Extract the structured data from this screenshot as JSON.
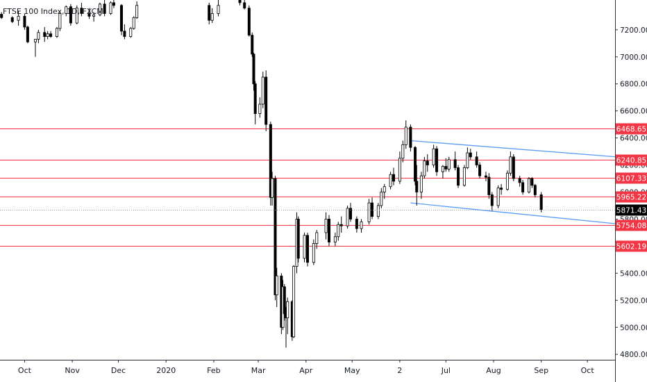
{
  "chart_data": {
    "type": "candlestick",
    "legend": "FTSE 100 Index, 1D, FXCM",
    "ylim": [
      4760,
      7420
    ],
    "y_ticks": [
      4800,
      5000,
      5200,
      5400,
      5600,
      5800,
      6000,
      6200,
      6400,
      6600,
      6800,
      7000,
      7200
    ],
    "y_tick_labels": [
      "4800.00",
      "5000.00",
      "5200.00",
      "5400.00",
      "5600.00",
      "5800.00",
      "6000.00",
      "6200.00",
      "6400.00",
      "6600.00",
      "6800.00",
      "7000.00",
      "7200.00"
    ],
    "x_start": "2019-09-15",
    "x_end": "2020-10-19",
    "x_ticks": [
      {
        "date": "2019-10-01",
        "label": "Oct"
      },
      {
        "date": "2019-11-01",
        "label": "Nov"
      },
      {
        "date": "2019-12-01",
        "label": "Dec"
      },
      {
        "date": "2020-01-01",
        "label": "2020"
      },
      {
        "date": "2020-02-01",
        "label": "Feb"
      },
      {
        "date": "2020-03-01",
        "label": "Mar"
      },
      {
        "date": "2020-04-01",
        "label": "Apr"
      },
      {
        "date": "2020-05-01",
        "label": "May"
      },
      {
        "date": "2020-06-01",
        "label": "2"
      },
      {
        "date": "2020-07-01",
        "label": "Jul"
      },
      {
        "date": "2020-08-01",
        "label": "Aug"
      },
      {
        "date": "2020-09-01",
        "label": "Sep"
      },
      {
        "date": "2020-10-01",
        "label": "Oct"
      }
    ],
    "levels": [
      {
        "value": 6468.65,
        "label": "6468.65"
      },
      {
        "value": 6240.85,
        "label": "6240.85"
      },
      {
        "value": 6107.33,
        "label": "6107.33"
      },
      {
        "value": 5965.22,
        "label": "5965.22"
      },
      {
        "value": 5754.08,
        "label": "5754.08"
      },
      {
        "value": 5602.19,
        "label": "5602.19"
      }
    ],
    "last_price": {
      "value": 5871.43,
      "label": "5871.43"
    },
    "trendlines": [
      {
        "from": [
          "2020-06-08",
          6380
        ],
        "to": [
          "2020-10-20",
          6260
        ]
      },
      {
        "from": [
          "2020-06-08",
          5920
        ],
        "to": [
          "2020-10-20",
          5765
        ]
      }
    ],
    "colors": {
      "level": "#f23645",
      "trendline": "#5b9cf6",
      "candle": "#000000",
      "last_price_badge": "#000000",
      "axis_text": "#131722"
    },
    "candles": [
      [
        "2019-09-16",
        7315,
        7330,
        7280,
        7290
      ],
      [
        "2019-09-23",
        7290,
        7300,
        7250,
        7260
      ],
      [
        "2019-09-27",
        7270,
        7340,
        7230,
        7300
      ],
      [
        "2019-10-01",
        7300,
        7320,
        7200,
        7220
      ],
      [
        "2019-10-03",
        7220,
        7230,
        7100,
        7110
      ],
      [
        "2019-10-08",
        7110,
        7130,
        7000,
        7130
      ],
      [
        "2019-10-10",
        7130,
        7200,
        7100,
        7180
      ],
      [
        "2019-10-14",
        7180,
        7220,
        7110,
        7150
      ],
      [
        "2019-10-16",
        7150,
        7190,
        7130,
        7170
      ],
      [
        "2019-10-18",
        7170,
        7190,
        7140,
        7150
      ],
      [
        "2019-10-22",
        7150,
        7220,
        7140,
        7210
      ],
      [
        "2019-10-24",
        7210,
        7340,
        7190,
        7320
      ],
      [
        "2019-10-28",
        7320,
        7380,
        7300,
        7370
      ],
      [
        "2019-10-31",
        7370,
        7390,
        7230,
        7250
      ],
      [
        "2019-11-04",
        7250,
        7380,
        7240,
        7360
      ],
      [
        "2019-11-07",
        7360,
        7400,
        7300,
        7320
      ],
      [
        "2019-11-12",
        7320,
        7360,
        7280,
        7300
      ],
      [
        "2019-11-15",
        7300,
        7330,
        7260,
        7310
      ],
      [
        "2019-11-19",
        7310,
        7400,
        7300,
        7390
      ],
      [
        "2019-11-22",
        7390,
        7420,
        7300,
        7320
      ],
      [
        "2019-11-26",
        7320,
        7410,
        7310,
        7400
      ],
      [
        "2019-11-28",
        7400,
        7420,
        7360,
        7380
      ],
      [
        "2019-12-03",
        7380,
        7390,
        7160,
        7190
      ],
      [
        "2019-12-05",
        7190,
        7240,
        7130,
        7150
      ],
      [
        "2019-12-09",
        7150,
        7220,
        7140,
        7210
      ],
      [
        "2019-12-11",
        7210,
        7300,
        7200,
        7290
      ],
      [
        "2019-12-13",
        7290,
        7410,
        7280,
        7380
      ],
      [
        "2020-01-29",
        7380,
        7400,
        7240,
        7270
      ],
      [
        "2020-01-31",
        7270,
        7360,
        7250,
        7320
      ],
      [
        "2020-02-04",
        7320,
        7420,
        7300,
        7380
      ],
      [
        "2020-02-18",
        7420,
        7440,
        7380,
        7400
      ],
      [
        "2020-02-21",
        7400,
        7420,
        7350,
        7360
      ],
      [
        "2020-02-24",
        7360,
        7380,
        7150,
        7160
      ],
      [
        "2020-02-26",
        7160,
        7180,
        7000,
        7020
      ],
      [
        "2020-02-27",
        7020,
        7030,
        6750,
        6800
      ],
      [
        "2020-02-28",
        6800,
        6820,
        6500,
        6580
      ],
      [
        "2020-03-02",
        6580,
        6700,
        6550,
        6650
      ],
      [
        "2020-03-04",
        6650,
        6890,
        6620,
        6850
      ],
      [
        "2020-03-06",
        6850,
        6900,
        6450,
        6500
      ],
      [
        "2020-03-09",
        6500,
        6520,
        5900,
        5960
      ],
      [
        "2020-03-10",
        5960,
        6150,
        5900,
        6100
      ],
      [
        "2020-03-12",
        6100,
        6120,
        5200,
        5240
      ],
      [
        "2020-03-13",
        5240,
        5440,
        5150,
        5380
      ],
      [
        "2020-03-16",
        5380,
        5400,
        4950,
        5000
      ],
      [
        "2020-03-17",
        5000,
        5350,
        4980,
        5300
      ],
      [
        "2020-03-18",
        5300,
        5320,
        5050,
        5100
      ],
      [
        "2020-03-19",
        5100,
        5150,
        4850,
        5070
      ],
      [
        "2020-03-20",
        5070,
        5220,
        4950,
        5190
      ],
      [
        "2020-03-23",
        5190,
        5200,
        4900,
        4930
      ],
      [
        "2020-03-24",
        4930,
        5460,
        4920,
        5450
      ],
      [
        "2020-03-26",
        5450,
        5850,
        5400,
        5800
      ],
      [
        "2020-03-27",
        5800,
        5820,
        5480,
        5510
      ],
      [
        "2020-03-31",
        5510,
        5700,
        5480,
        5680
      ],
      [
        "2020-04-02",
        5680,
        5700,
        5450,
        5480
      ],
      [
        "2020-04-06",
        5480,
        5650,
        5460,
        5620
      ],
      [
        "2020-04-08",
        5620,
        5720,
        5580,
        5700
      ],
      [
        "2020-04-14",
        5700,
        5850,
        5650,
        5800
      ],
      [
        "2020-04-16",
        5800,
        5830,
        5600,
        5630
      ],
      [
        "2020-04-20",
        5630,
        5700,
        5600,
        5670
      ],
      [
        "2020-04-22",
        5670,
        5780,
        5640,
        5760
      ],
      [
        "2020-04-24",
        5760,
        5820,
        5700,
        5750
      ],
      [
        "2020-04-28",
        5750,
        5900,
        5730,
        5880
      ],
      [
        "2020-04-30",
        5880,
        5920,
        5780,
        5800
      ],
      [
        "2020-05-04",
        5800,
        5820,
        5700,
        5730
      ],
      [
        "2020-05-07",
        5730,
        5800,
        5700,
        5780
      ],
      [
        "2020-05-12",
        5780,
        5950,
        5760,
        5920
      ],
      [
        "2020-05-14",
        5920,
        5960,
        5800,
        5820
      ],
      [
        "2020-05-18",
        5820,
        5920,
        5800,
        5900
      ],
      [
        "2020-05-20",
        5900,
        6030,
        5880,
        6000
      ],
      [
        "2020-05-22",
        6000,
        6060,
        5950,
        6040
      ],
      [
        "2020-05-26",
        6040,
        6150,
        6020,
        6130
      ],
      [
        "2020-05-28",
        6130,
        6180,
        6050,
        6080
      ],
      [
        "2020-06-01",
        6080,
        6300,
        6060,
        6250
      ],
      [
        "2020-06-03",
        6250,
        6380,
        6220,
        6350
      ],
      [
        "2020-06-05",
        6350,
        6530,
        6320,
        6480
      ],
      [
        "2020-06-08",
        6480,
        6500,
        6300,
        6330
      ],
      [
        "2020-06-11",
        6330,
        6340,
        6050,
        6080
      ],
      [
        "2020-06-12",
        6080,
        6200,
        5900,
        6000
      ],
      [
        "2020-06-15",
        6000,
        6150,
        5950,
        6120
      ],
      [
        "2020-06-17",
        6120,
        6260,
        6100,
        6230
      ],
      [
        "2020-06-19",
        6230,
        6280,
        6150,
        6200
      ],
      [
        "2020-06-23",
        6200,
        6350,
        6180,
        6320
      ],
      [
        "2020-06-25",
        6320,
        6340,
        6120,
        6150
      ],
      [
        "2020-06-29",
        6150,
        6200,
        6100,
        6190
      ],
      [
        "2020-07-01",
        6190,
        6250,
        6150,
        6170
      ],
      [
        "2020-07-03",
        6170,
        6260,
        6150,
        6240
      ],
      [
        "2020-07-07",
        6240,
        6300,
        6160,
        6180
      ],
      [
        "2020-07-09",
        6180,
        6200,
        6030,
        6050
      ],
      [
        "2020-07-13",
        6050,
        6200,
        6040,
        6180
      ],
      [
        "2020-07-15",
        6180,
        6330,
        6170,
        6290
      ],
      [
        "2020-07-17",
        6290,
        6320,
        6240,
        6260
      ],
      [
        "2020-07-21",
        6260,
        6300,
        6180,
        6200
      ],
      [
        "2020-07-23",
        6200,
        6220,
        6100,
        6120
      ],
      [
        "2020-07-27",
        6120,
        6150,
        6080,
        6110
      ],
      [
        "2020-07-29",
        6110,
        6140,
        5950,
        5980
      ],
      [
        "2020-07-31",
        5980,
        6000,
        5860,
        5900
      ],
      [
        "2020-08-04",
        5900,
        6050,
        5880,
        6030
      ],
      [
        "2020-08-06",
        6030,
        6060,
        5980,
        6020
      ],
      [
        "2020-08-10",
        6020,
        6160,
        6010,
        6140
      ],
      [
        "2020-08-12",
        6140,
        6300,
        6120,
        6260
      ],
      [
        "2020-08-14",
        6260,
        6280,
        6080,
        6100
      ],
      [
        "2020-08-18",
        6100,
        6120,
        6040,
        6070
      ],
      [
        "2020-08-20",
        6070,
        6090,
        5980,
        6000
      ],
      [
        "2020-08-24",
        6000,
        6110,
        5990,
        6100
      ],
      [
        "2020-08-26",
        6100,
        6110,
        6030,
        6050
      ],
      [
        "2020-08-28",
        6050,
        6060,
        5960,
        5980
      ],
      [
        "2020-09-01",
        5980,
        6000,
        5850,
        5871.43
      ]
    ]
  }
}
